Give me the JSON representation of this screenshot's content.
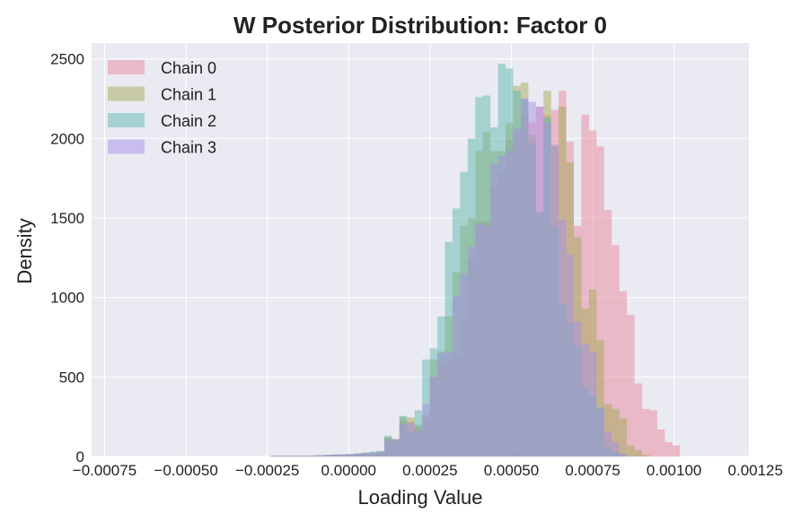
{
  "chart_data": {
    "type": "histogram",
    "title": "W Posterior Distribution: Factor 0",
    "xlabel": "Loading Value",
    "ylabel": "Density",
    "xlim": [
      -0.00079,
      0.00123
    ],
    "ylim": [
      0,
      2600
    ],
    "xticks": [
      -0.00075,
      -0.0005,
      -0.00025,
      0.0,
      0.00025,
      0.0005,
      0.00075,
      0.001,
      0.00125
    ],
    "xtick_labels": [
      "−0.00075",
      "−0.00050",
      "−0.00025",
      "0.00000",
      "0.00025",
      "0.00050",
      "0.00075",
      "0.00100",
      "0.00125"
    ],
    "yticks": [
      0,
      500,
      1000,
      1500,
      2000,
      2500
    ],
    "ytick_labels": [
      "0",
      "500",
      "1000",
      "1500",
      "2000",
      "2500"
    ],
    "grid": true,
    "legend_position": "top-left",
    "series": [
      {
        "name": "Chain 0",
        "color": "#e8879c",
        "bin_start": -0.00024,
        "bin_width": 2.33e-05,
        "values": [
          5,
          5,
          5,
          5,
          5,
          6,
          8,
          10,
          12,
          14,
          15,
          18,
          22,
          25,
          30,
          120,
          110,
          225,
          220,
          190,
          230,
          500,
          580,
          600,
          640,
          840,
          1240,
          1480,
          1480,
          1690,
          1780,
          1990,
          2030,
          2150,
          2100,
          2200,
          2150,
          2180,
          2300,
          1980,
          1450,
          2150,
          2050,
          1950,
          1550,
          1330,
          1040,
          890,
          460,
          300,
          290,
          170,
          90,
          70,
          0
        ]
      },
      {
        "name": "Chain 1",
        "color": "#a3a956",
        "bin_start": -0.00024,
        "bin_width": 2.33e-05,
        "values": [
          5,
          5,
          5,
          5,
          5,
          6,
          8,
          10,
          12,
          14,
          15,
          18,
          22,
          25,
          30,
          120,
          110,
          250,
          245,
          200,
          260,
          610,
          660,
          880,
          1160,
          1450,
          1500,
          1920,
          2040,
          1920,
          1920,
          2100,
          2330,
          2350,
          2020,
          1540,
          2300,
          1950,
          2200,
          1850,
          1380,
          930,
          1050,
          730,
          330,
          300,
          240,
          70,
          40,
          10,
          0,
          0,
          0,
          0,
          0
        ]
      },
      {
        "name": "Chain 2",
        "color": "#5fb8b0",
        "bin_start": -0.00024,
        "bin_width": 2.33e-05,
        "values": [
          5,
          5,
          5,
          5,
          5,
          6,
          8,
          10,
          12,
          14,
          15,
          20,
          25,
          30,
          35,
          130,
          100,
          255,
          150,
          290,
          610,
          680,
          880,
          1350,
          1560,
          1790,
          2000,
          2260,
          2270,
          2070,
          2470,
          2440,
          2300,
          2250,
          1970,
          1530,
          2130,
          1450,
          960,
          840,
          690,
          440,
          380,
          310,
          60,
          30,
          10,
          0,
          0,
          0,
          0,
          0,
          0,
          0,
          0
        ]
      },
      {
        "name": "Chain 3",
        "color": "#a78fe8",
        "bin_start": -0.00024,
        "bin_width": 2.33e-05,
        "values": [
          5,
          5,
          5,
          5,
          5,
          6,
          8,
          10,
          12,
          14,
          15,
          18,
          20,
          25,
          30,
          100,
          110,
          200,
          210,
          160,
          330,
          500,
          650,
          660,
          1010,
          1150,
          1320,
          1460,
          1450,
          1840,
          1890,
          1920,
          2060,
          2250,
          2230,
          2200,
          2100,
          1960,
          1490,
          1270,
          850,
          710,
          660,
          300,
          160,
          90,
          20,
          0,
          0,
          0,
          0,
          0,
          0,
          0,
          0
        ]
      }
    ]
  }
}
